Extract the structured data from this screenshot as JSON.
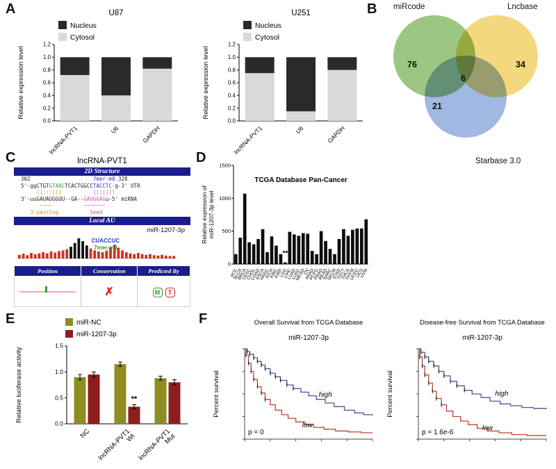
{
  "panel_letters": [
    "A",
    "B",
    "C",
    "D",
    "E",
    "F"
  ],
  "chart_data": [
    {
      "type": "stacked-bar",
      "panel": "A",
      "title": "U87",
      "categories": [
        "lncRNA-PVT1",
        "U6",
        "GAPDH"
      ],
      "cytosol": [
        0.72,
        0.4,
        0.82
      ],
      "nucleus": [
        0.28,
        0.6,
        0.18
      ],
      "colors": {
        "cytosol": "#d9d9d9",
        "nucleus": "#2a2a2a"
      },
      "legend": [
        "Nucleus",
        "Cytosol"
      ],
      "ylabel": "Relative expression level",
      "ylim": [
        0,
        1.2
      ],
      "yticks": [
        0,
        0.2,
        0.4,
        0.6,
        0.8,
        1.0,
        1.2
      ]
    },
    {
      "type": "stacked-bar",
      "panel": "A",
      "title": "U251",
      "categories": [
        "lncRNA-PVT1",
        "U6",
        "GAPDH"
      ],
      "cytosol": [
        0.75,
        0.15,
        0.8
      ],
      "nucleus": [
        0.25,
        0.85,
        0.2
      ],
      "colors": {
        "cytosol": "#d9d9d9",
        "nucleus": "#2a2a2a"
      },
      "legend": [
        "Nucleus",
        "Cytosol"
      ],
      "ylabel": "Relative expression level",
      "ylim": [
        0,
        1.2
      ],
      "yticks": [
        0,
        0.2,
        0.4,
        0.6,
        0.8,
        1.0,
        1.2
      ]
    },
    {
      "type": "bar",
      "panel": "D",
      "title": "TCGA Database Pan-Cancer",
      "ylabel_lines": [
        "Relative expression of",
        "miR-1207-3p level"
      ],
      "categories": [
        "ACC",
        "BLCA",
        "BRCA",
        "CESC",
        "CHOL",
        "COAD",
        "ESCA",
        "HNSC",
        "KICH",
        "KIRC",
        "KIRP",
        "LGG",
        "LIHC",
        "LUAD",
        "LUSC",
        "MESO",
        "OV",
        "PAAD",
        "PCPG",
        "PRAD",
        "READ",
        "SARC",
        "SKCM",
        "STAD",
        "TGCT",
        "THCA",
        "THYM",
        "UCEC",
        "UCS",
        "UVM"
      ],
      "values": [
        150,
        400,
        1070,
        330,
        300,
        380,
        530,
        180,
        420,
        280,
        150,
        25,
        490,
        450,
        430,
        470,
        460,
        200,
        150,
        500,
        350,
        230,
        150,
        380,
        530,
        430,
        520,
        540,
        540,
        680
      ],
      "bar_color": "#0d0d0d",
      "ylim": [
        0,
        1500
      ],
      "yticks": [
        0,
        500,
        1000,
        1500
      ],
      "annotations": [
        {
          "index": 11,
          "label": "**"
        }
      ]
    },
    {
      "type": "grouped-bar",
      "panel": "E",
      "ylabel": "Relative luciferase activity",
      "categories": [
        [
          "NC"
        ],
        [
          "lncRNA-PVT1",
          "Wt"
        ],
        [
          "lncRNA-PVT1",
          "Mut"
        ]
      ],
      "series": [
        {
          "name": "miR-NC",
          "color": "#8d8d21",
          "values": [
            0.9,
            1.15,
            0.88
          ],
          "errors": [
            0.05,
            0.04,
            0.04
          ]
        },
        {
          "name": "miR-1207-3p",
          "color": "#8e1e1e",
          "values": [
            0.95,
            0.33,
            0.8
          ],
          "errors": [
            0.05,
            0.04,
            0.05
          ]
        }
      ],
      "ylim": [
        0,
        1.5
      ],
      "yticks": [
        0,
        0.5,
        1.0,
        1.5
      ],
      "annotations": [
        {
          "group": 1,
          "series": 1,
          "label": "**"
        }
      ]
    },
    {
      "type": "line",
      "panel": "F",
      "title": "Overall Survival from TCGA Database",
      "subtitle": "miR-1207-3p",
      "ylabel": "Percent survival",
      "p_label": "p = 0",
      "series": [
        {
          "name": "high",
          "color": "#47598f",
          "label_pos": [
            0.58,
            0.47
          ],
          "points": [
            [
              0,
              1
            ],
            [
              0.02,
              0.97
            ],
            [
              0.04,
              0.94
            ],
            [
              0.07,
              0.9
            ],
            [
              0.1,
              0.86
            ],
            [
              0.13,
              0.82
            ],
            [
              0.16,
              0.78
            ],
            [
              0.2,
              0.73
            ],
            [
              0.24,
              0.69
            ],
            [
              0.28,
              0.65
            ],
            [
              0.33,
              0.6
            ],
            [
              0.38,
              0.56
            ],
            [
              0.44,
              0.52
            ],
            [
              0.5,
              0.48
            ],
            [
              0.56,
              0.44
            ],
            [
              0.63,
              0.4
            ],
            [
              0.7,
              0.36
            ],
            [
              0.78,
              0.32
            ],
            [
              0.86,
              0.29
            ],
            [
              0.93,
              0.27
            ],
            [
              1,
              0.26
            ]
          ]
        },
        {
          "name": "low",
          "color": "#c04335",
          "label_pos": [
            0.45,
            0.13
          ],
          "points": [
            [
              0,
              1
            ],
            [
              0.01,
              0.93
            ],
            [
              0.03,
              0.84
            ],
            [
              0.05,
              0.75
            ],
            [
              0.07,
              0.66
            ],
            [
              0.1,
              0.58
            ],
            [
              0.13,
              0.51
            ],
            [
              0.16,
              0.44
            ],
            [
              0.2,
              0.38
            ],
            [
              0.24,
              0.32
            ],
            [
              0.29,
              0.27
            ],
            [
              0.34,
              0.23
            ],
            [
              0.4,
              0.19
            ],
            [
              0.47,
              0.16
            ],
            [
              0.54,
              0.13
            ],
            [
              0.62,
              0.11
            ],
            [
              0.71,
              0.09
            ],
            [
              0.81,
              0.08
            ],
            [
              0.91,
              0.07
            ],
            [
              1,
              0.07
            ]
          ]
        }
      ]
    },
    {
      "type": "line",
      "panel": "F",
      "title": "Disease-free Survival from TCGA Database",
      "subtitle": "miR-1207-3p",
      "ylabel": "Percent survival",
      "p_label": "p = 1.6e-6",
      "series": [
        {
          "name": "high",
          "color": "#47598f",
          "label_pos": [
            0.6,
            0.48
          ],
          "points": [
            [
              0,
              1
            ],
            [
              0.02,
              0.96
            ],
            [
              0.05,
              0.91
            ],
            [
              0.08,
              0.86
            ],
            [
              0.12,
              0.81
            ],
            [
              0.16,
              0.75
            ],
            [
              0.2,
              0.7
            ],
            [
              0.25,
              0.64
            ],
            [
              0.3,
              0.59
            ],
            [
              0.36,
              0.54
            ],
            [
              0.42,
              0.5
            ],
            [
              0.49,
              0.46
            ],
            [
              0.56,
              0.42
            ],
            [
              0.64,
              0.39
            ],
            [
              0.72,
              0.37
            ],
            [
              0.81,
              0.35
            ],
            [
              0.9,
              0.34
            ],
            [
              1,
              0.33
            ]
          ]
        },
        {
          "name": "low",
          "color": "#c04335",
          "label_pos": [
            0.5,
            0.1
          ],
          "points": [
            [
              0,
              1
            ],
            [
              0.01,
              0.91
            ],
            [
              0.03,
              0.81
            ],
            [
              0.05,
              0.71
            ],
            [
              0.08,
              0.62
            ],
            [
              0.11,
              0.53
            ],
            [
              0.14,
              0.45
            ],
            [
              0.18,
              0.38
            ],
            [
              0.22,
              0.31
            ],
            [
              0.27,
              0.25
            ],
            [
              0.33,
              0.2
            ],
            [
              0.39,
              0.16
            ],
            [
              0.46,
              0.12
            ],
            [
              0.54,
              0.09
            ],
            [
              0.63,
              0.07
            ],
            [
              0.73,
              0.05
            ],
            [
              0.85,
              0.04
            ],
            [
              1,
              0.04
            ]
          ]
        }
      ]
    }
  ],
  "panelB": {
    "sets": [
      {
        "label": "miRcode",
        "value": 76,
        "color": "#8fbe72"
      },
      {
        "label": "Lncbase",
        "value": 34,
        "color": "#f2d36b"
      },
      {
        "label": "Starbase 3.0",
        "value": 21,
        "color": "#93aede"
      }
    ],
    "center_value": 6
  },
  "panelC": {
    "title": "lncRNA-PVT1",
    "structure_header": "2D Structure",
    "pos_left": "302",
    "pos_gap1": "                    ",
    "site_type": "7mer-m8",
    "pos_gap2": " ",
    "pos_right": "328",
    "utr_pre": "5'-ggCTGT",
    "utr_seed1": "GTAAC",
    "utr_mid": "TCACTGGCC",
    "utr_seed2": "TACCTC",
    "utr_post": "-g-3'",
    "utr_sp": " ",
    "utr_label": "UTR",
    "pipes_pad": "     ",
    "pipes1": "||:::|||",
    "pipes_gap": "          ",
    "pipes2": "|||||||",
    "mir_pre": "3'-uu",
    "mir_body": "GAUAUGGUU",
    "mir_mid": "--GA--",
    "mir_seed": "GAUGGAG",
    "mir_post": "u-5'",
    "mir_sp": " ",
    "mirna_label": "miRNA",
    "marks_pad": "      ",
    "marks1": "~~~~",
    "marks_gap": "          ",
    "marks2": "~~~~~~~",
    "pl_pad": "   ",
    "pairing_label": "3'pairing",
    "pl_gap": "          ",
    "seed_label": "Seed",
    "local_au_header": "Local AU",
    "mirna_name": "miR-1207-3p",
    "au_site_seq": "CUACCUC",
    "au_site_type": "7mer-m8",
    "au_profile": [
      0.12,
      0.18,
      0.1,
      0.22,
      0.15,
      0.2,
      0.26,
      0.2,
      0.3,
      0.24,
      0.32,
      0.36,
      0.42,
      0.55,
      0.75,
      1.0,
      0.85,
      0.62,
      0.46,
      0.36,
      0.3,
      0.26,
      0.34,
      0.52,
      0.66,
      0.5,
      0.36,
      0.26,
      0.2,
      0.16,
      0.22,
      0.16,
      0.12,
      0.16,
      0.1,
      0.08,
      0.12,
      0.08,
      0.06,
      0.06
    ],
    "au_black_from": 13,
    "au_black_to": 17,
    "au_bar_color": "#cc3322",
    "table_headers": [
      "Position",
      "Conservation",
      "Predicted By"
    ],
    "conservation_mark": "✗",
    "predicted_by": [
      "M",
      "T"
    ]
  }
}
